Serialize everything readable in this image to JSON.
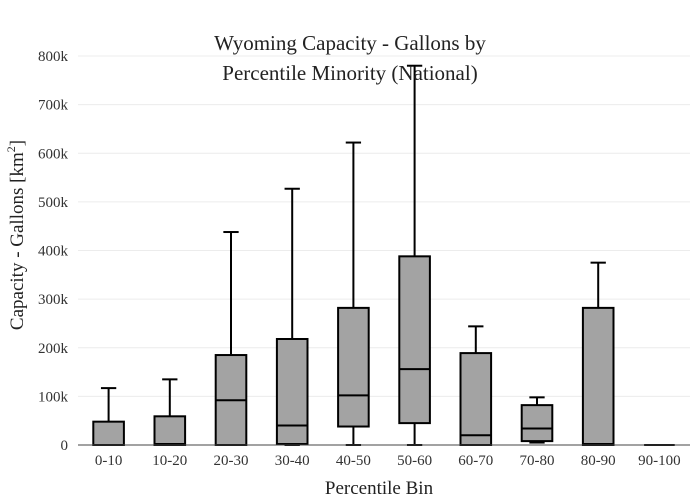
{
  "chart_data": {
    "type": "box",
    "title_lines": [
      "Wyoming Capacity - Gallons by",
      "Percentile Minority (National)"
    ],
    "xlabel": "Percentile Bin",
    "ylabel_main": "Capacity - Gallons  [km",
    "ylabel_sup": "2",
    "ylabel_end": "]",
    "ylim": [
      0,
      800000
    ],
    "yticks": [
      {
        "value": 0,
        "label": "0"
      },
      {
        "value": 100000,
        "label": "100k"
      },
      {
        "value": 200000,
        "label": "200k"
      },
      {
        "value": 300000,
        "label": "300k"
      },
      {
        "value": 400000,
        "label": "400k"
      },
      {
        "value": 500000,
        "label": "500k"
      },
      {
        "value": 600000,
        "label": "600k"
      },
      {
        "value": 700000,
        "label": "700k"
      },
      {
        "value": 800000,
        "label": "800k"
      }
    ],
    "categories": [
      "0-10",
      "10-20",
      "20-30",
      "30-40",
      "40-50",
      "50-60",
      "60-70",
      "70-80",
      "80-90",
      "90-100"
    ],
    "boxes": [
      {
        "min": 0,
        "q1": 0,
        "median": 0,
        "q3": 48000,
        "max": 117000
      },
      {
        "min": 0,
        "q1": 0,
        "median": 2000,
        "q3": 59000,
        "max": 135000
      },
      {
        "min": 0,
        "q1": 0,
        "median": 92000,
        "q3": 185000,
        "max": 438000
      },
      {
        "min": 0,
        "q1": 2000,
        "median": 40000,
        "q3": 218000,
        "max": 527000
      },
      {
        "min": 0,
        "q1": 38000,
        "median": 102000,
        "q3": 282000,
        "max": 622000
      },
      {
        "min": 0,
        "q1": 45000,
        "median": 156000,
        "q3": 388000,
        "max": 780000
      },
      {
        "min": 0,
        "q1": 0,
        "median": 20000,
        "q3": 189000,
        "max": 244000
      },
      {
        "min": 5000,
        "q1": 8000,
        "median": 34000,
        "q3": 82000,
        "max": 98000
      },
      {
        "min": 0,
        "q1": 0,
        "median": 2000,
        "q3": 282000,
        "max": 375000
      },
      {
        "min": 0,
        "q1": 0,
        "median": 0,
        "q3": 0,
        "max": 0
      }
    ],
    "colors": {
      "box_fill": "#a3a3a3",
      "box_line": "#000000"
    },
    "grid": true
  }
}
